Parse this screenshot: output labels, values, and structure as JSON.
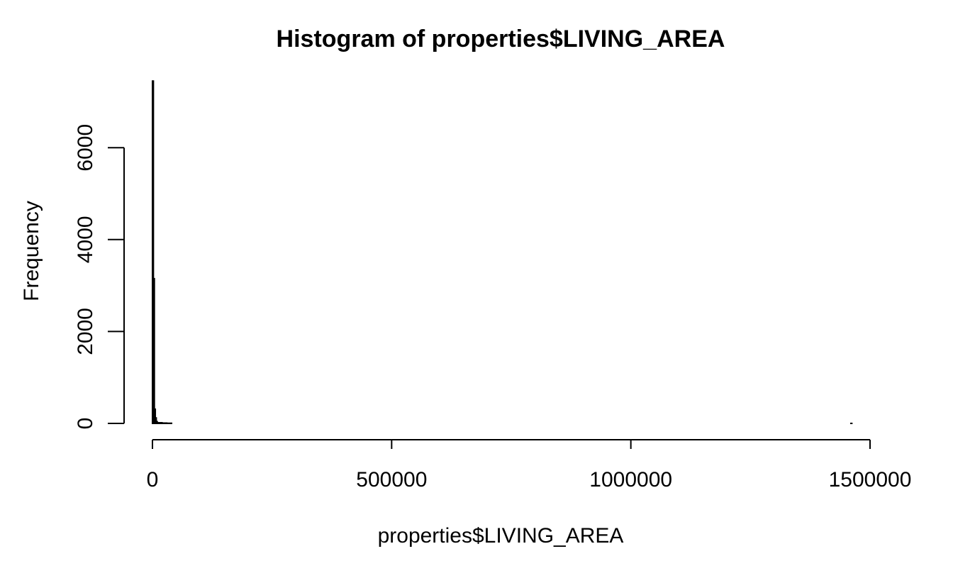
{
  "chart_data": {
    "type": "bar",
    "title": "Histogram of properties$LIVING_AREA",
    "xlabel": "properties$LIVING_AREA",
    "ylabel": "Frequency",
    "x_ticks": [
      "0",
      "500000",
      "1000000",
      "1500000"
    ],
    "y_ticks": [
      "0",
      "2000",
      "4000",
      "6000"
    ],
    "xlim": [
      0,
      1500000
    ],
    "ylim": [
      0,
      7500
    ],
    "grid": false,
    "legend": "none",
    "series": [
      {
        "bin_starts": [
          0,
          2000,
          4000,
          6000,
          8000,
          10000,
          20000,
          30000,
          40000,
          1460000
        ],
        "bin_ends": [
          2000,
          4000,
          6000,
          8000,
          10000,
          20000,
          30000,
          40000,
          1460000,
          1462000
        ],
        "values": [
          7450,
          3150,
          310,
          120,
          40,
          15,
          8,
          4,
          0,
          1
        ]
      }
    ]
  }
}
